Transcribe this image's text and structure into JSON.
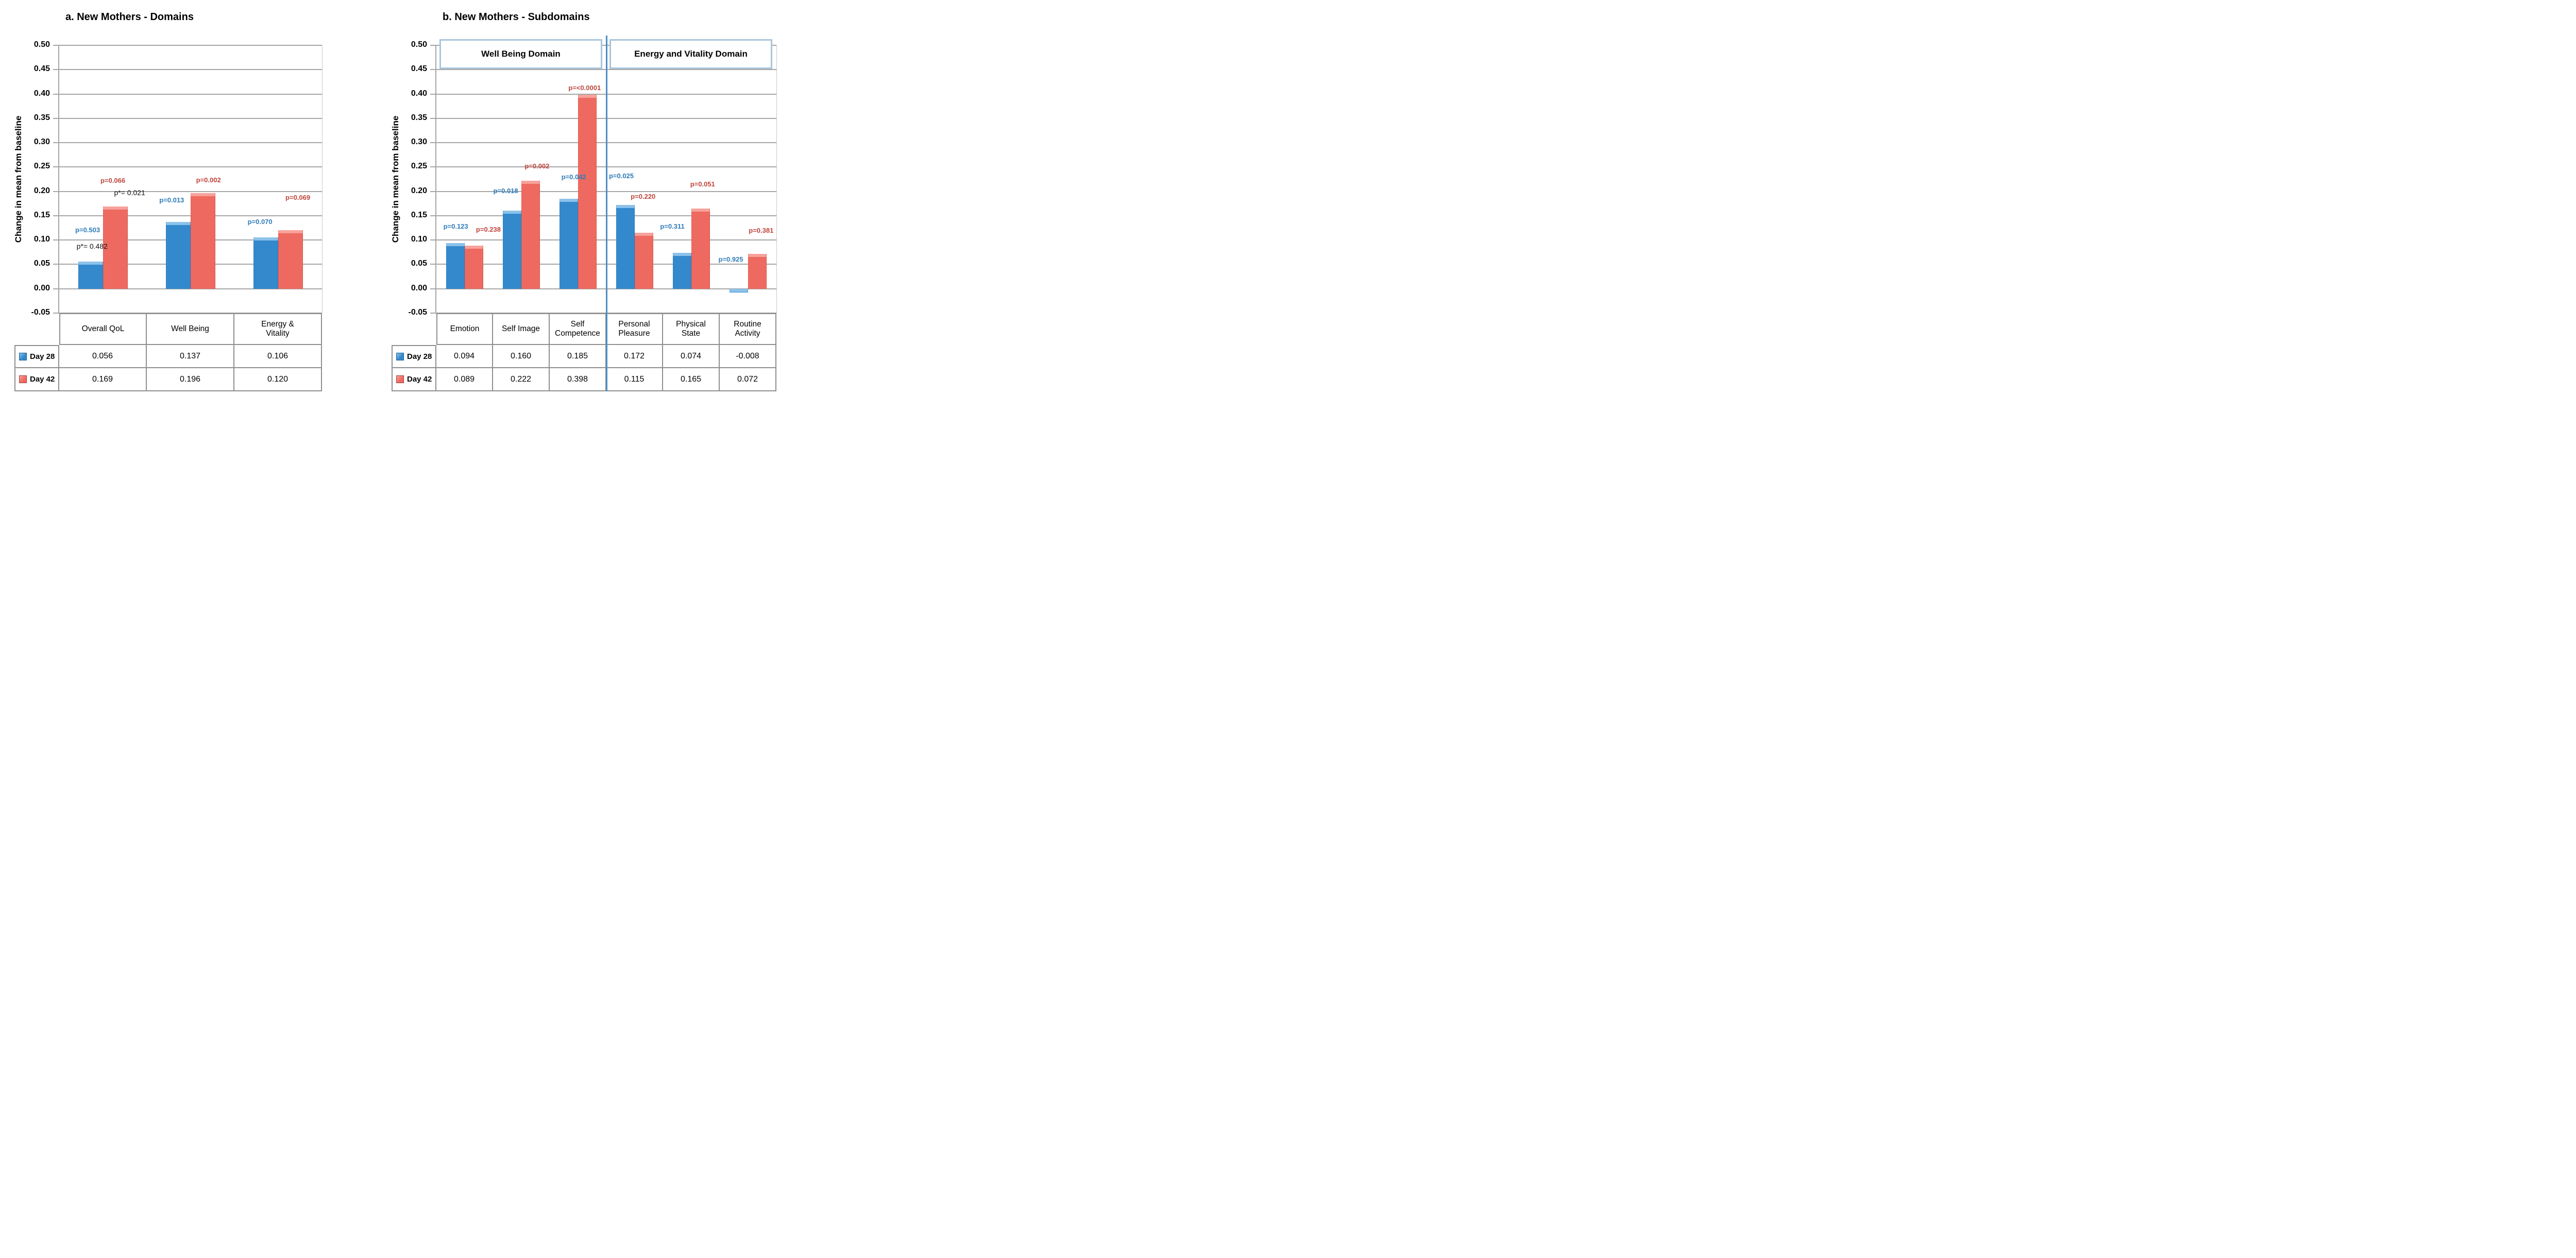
{
  "page": {
    "background": "#ffffff"
  },
  "colors": {
    "day28": "#3489cc",
    "day28_light": "#8cc2ea",
    "day28_dark": "#1d5e93",
    "day42": "#ee6a60",
    "day42_light": "#f7a29b",
    "day42_dark": "#a23b33",
    "p_day28": "#2f7cba",
    "p_day42": "#bf453c",
    "black": "#111111",
    "grid": "#a6a6a6",
    "axis": "#a6a6a6",
    "plot_right": "#c9c9c9",
    "table_border": "#8f8f8f",
    "divider": "#4e8fc4",
    "domain_box_border": "#a9c5dd"
  },
  "chart_data": [
    {
      "id": "a",
      "type": "bar",
      "title": "a. New Mothers - Domains",
      "ylabel": "Change in mean from baseline",
      "ylim": [
        -0.05,
        0.5
      ],
      "ystep": 0.05,
      "grid": true,
      "legend_position": "table-left",
      "categories": [
        "Overall QoL",
        "Well Being",
        "Energy &\nVitality"
      ],
      "series": [
        {
          "name": "Day 28",
          "color_key": "day28",
          "values": [
            0.056,
            0.137,
            0.106
          ]
        },
        {
          "name": "Day 42",
          "color_key": "day42",
          "values": [
            0.169,
            0.196,
            0.12
          ]
        }
      ],
      "annotations": [
        {
          "text": "p=0.503",
          "color_key": "day28",
          "x": 0.108,
          "y": 0.12
        },
        {
          "text": "p*= 0.482",
          "color_key": "black",
          "x": 0.125,
          "y": 0.088
        },
        {
          "text": "p=0.066",
          "color_key": "day42",
          "x": 0.204,
          "y": 0.222
        },
        {
          "text": "p*= 0.021",
          "color_key": "black",
          "x": 0.268,
          "y": 0.198
        },
        {
          "text": "p=0.013",
          "color_key": "day28",
          "x": 0.428,
          "y": 0.182
        },
        {
          "text": "p=0.002",
          "color_key": "day42",
          "x": 0.568,
          "y": 0.223
        },
        {
          "text": "p=0.070",
          "color_key": "day28",
          "x": 0.764,
          "y": 0.137
        },
        {
          "text": "p=0.069",
          "color_key": "day42",
          "x": 0.908,
          "y": 0.187
        }
      ]
    },
    {
      "id": "b",
      "type": "bar",
      "title": "b. New Mothers - Subdomains",
      "ylabel": "Change in mean from baseline",
      "ylim": [
        -0.05,
        0.5
      ],
      "ystep": 0.05,
      "grid": true,
      "legend_position": "table-left",
      "categories": [
        "Emotion",
        "Self Image",
        "Self\nCompetence",
        "Personal\nPleasure",
        "Physical\nState",
        "Routine\nActivity"
      ],
      "series": [
        {
          "name": "Day 28",
          "color_key": "day28",
          "values": [
            0.094,
            0.16,
            0.185,
            0.172,
            0.074,
            -0.008
          ]
        },
        {
          "name": "Day 42",
          "color_key": "day42",
          "values": [
            0.089,
            0.222,
            0.398,
            0.115,
            0.165,
            0.072
          ]
        }
      ],
      "domain_headers": [
        {
          "label": "Well Being Domain",
          "span": [
            0,
            0.5
          ]
        },
        {
          "label": "Energy and Vitality Domain",
          "span": [
            0.5,
            1.0
          ]
        }
      ],
      "divider_x": 0.5,
      "annotations": [
        {
          "text": "p=0.123",
          "color_key": "day28",
          "x": 0.057,
          "y": 0.128
        },
        {
          "text": "p=0.238",
          "color_key": "day42",
          "x": 0.153,
          "y": 0.121
        },
        {
          "text": "p=0.018",
          "color_key": "day28",
          "x": 0.204,
          "y": 0.201
        },
        {
          "text": "p=0.002",
          "color_key": "day42",
          "x": 0.296,
          "y": 0.251
        },
        {
          "text": "p=0.042",
          "color_key": "day28",
          "x": 0.404,
          "y": 0.229
        },
        {
          "text": "p=<0.0001",
          "color_key": "day42",
          "x": 0.436,
          "y": 0.412
        },
        {
          "text": "p=0.025",
          "color_key": "day28",
          "x": 0.544,
          "y": 0.231
        },
        {
          "text": "p=0.220",
          "color_key": "day42",
          "x": 0.608,
          "y": 0.189
        },
        {
          "text": "p=0.311",
          "color_key": "day28",
          "x": 0.694,
          "y": 0.128
        },
        {
          "text": "p=0.051",
          "color_key": "day42",
          "x": 0.783,
          "y": 0.214
        },
        {
          "text": "p=0.925",
          "color_key": "day28",
          "x": 0.866,
          "y": 0.06
        },
        {
          "text": "p=0.381",
          "color_key": "day42",
          "x": 0.955,
          "y": 0.119
        }
      ]
    }
  ]
}
